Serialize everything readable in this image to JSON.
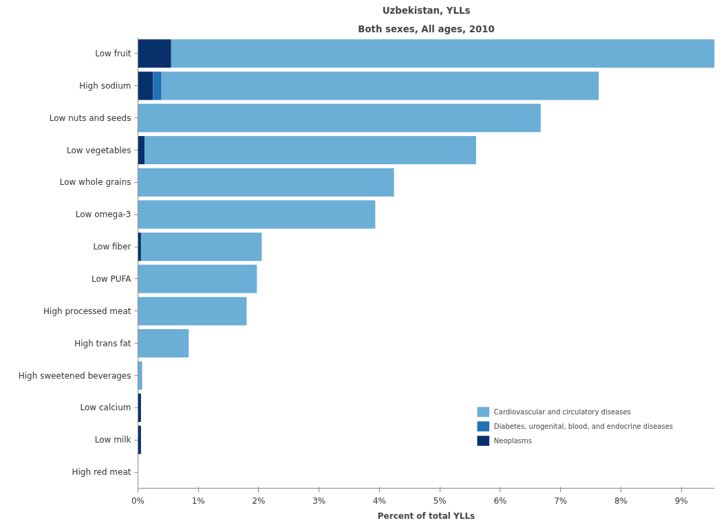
{
  "chart_data": {
    "type": "bar",
    "orientation": "horizontal",
    "stacked": true,
    "title": "Uzbekistan, YLLs",
    "subtitle": "Both sexes, All ages, 2010",
    "xlabel": "Percent of total YLLs",
    "categories": [
      "Low fruit",
      "High sodium",
      "Low nuts and seeds",
      "Low vegetables",
      "Low whole grains",
      "Low omega-3",
      "Low fiber",
      "Low PUFA",
      "High processed meat",
      "High trans fat",
      "High sweetened beverages",
      "Low calcium",
      "Low milk",
      "High red meat"
    ],
    "series": [
      {
        "name": "Neoplasms",
        "color": "#08306b",
        "values": [
          0.55,
          0.25,
          0,
          0.11,
          0,
          0,
          0.05,
          0,
          0,
          0,
          0,
          0.05,
          0.05,
          0
        ]
      },
      {
        "name": "Diabetes, urogenital, blood, and endocrine diseases",
        "color": "#2171b5",
        "values": [
          0,
          0.14,
          0,
          0,
          0,
          0,
          0,
          0,
          0,
          0,
          0,
          0,
          0,
          0
        ]
      },
      {
        "name": "Cardiovascular and circulatory diseases",
        "color": "#6baed6",
        "values": [
          9.0,
          7.24,
          6.67,
          5.49,
          4.24,
          3.93,
          2.0,
          1.97,
          1.8,
          0.84,
          0.07,
          0,
          0,
          0
        ]
      }
    ],
    "xlim": [
      0,
      9.55
    ],
    "xticks": [
      {
        "value": 0,
        "label": "0%"
      },
      {
        "value": 1,
        "label": "1%"
      },
      {
        "value": 2,
        "label": "2%"
      },
      {
        "value": 3,
        "label": "3%"
      },
      {
        "value": 4,
        "label": "4%"
      },
      {
        "value": 5,
        "label": "5%"
      },
      {
        "value": 6,
        "label": "6%"
      },
      {
        "value": 7,
        "label": "7%"
      },
      {
        "value": 8,
        "label": "8%"
      },
      {
        "value": 9,
        "label": "9%"
      }
    ],
    "grid": false,
    "legend": "bottom right"
  }
}
